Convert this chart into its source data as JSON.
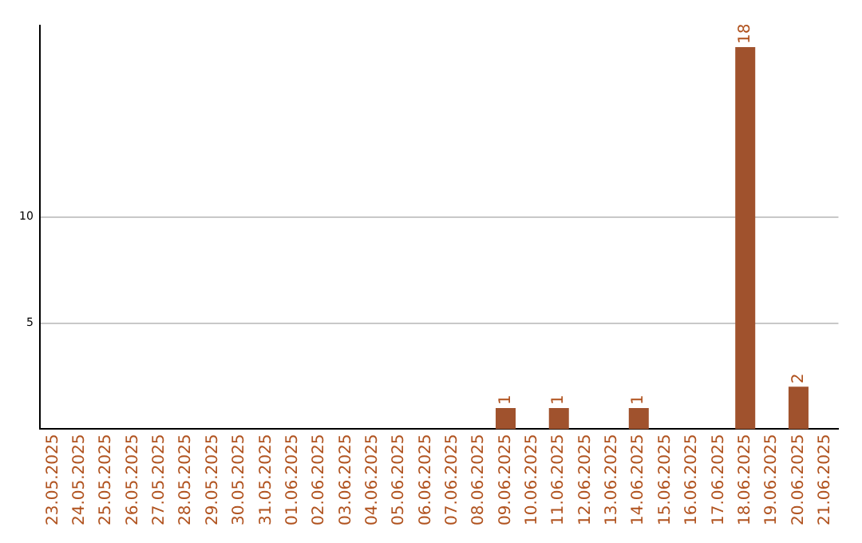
{
  "chart_data": {
    "type": "bar",
    "categories": [
      "23.05.2025",
      "24.05.2025",
      "25.05.2025",
      "26.05.2025",
      "27.05.2025",
      "28.05.2025",
      "29.05.2025",
      "30.05.2025",
      "31.05.2025",
      "01.06.2025",
      "02.06.2025",
      "03.06.2025",
      "04.06.2025",
      "05.06.2025",
      "06.06.2025",
      "07.06.2025",
      "08.06.2025",
      "09.06.2025",
      "10.06.2025",
      "11.06.2025",
      "12.06.2025",
      "13.06.2025",
      "14.06.2025",
      "15.06.2025",
      "16.06.2025",
      "17.06.2025",
      "18.06.2025",
      "19.06.2025",
      "20.06.2025",
      "21.06.2025"
    ],
    "values": [
      0,
      0,
      0,
      0,
      0,
      0,
      0,
      0,
      0,
      0,
      0,
      0,
      0,
      0,
      0,
      0,
      0,
      1,
      0,
      1,
      0,
      0,
      1,
      0,
      0,
      0,
      18,
      0,
      2,
      0
    ],
    "value_labels": [
      null,
      null,
      null,
      null,
      null,
      null,
      null,
      null,
      null,
      null,
      null,
      null,
      null,
      null,
      null,
      null,
      null,
      "1",
      null,
      "1",
      null,
      null,
      "1",
      null,
      null,
      null,
      "18",
      null,
      "2",
      null
    ],
    "color": "#a0522d",
    "ylim": [
      0,
      19
    ],
    "yticks": [
      5,
      10
    ],
    "grid": "y",
    "legend": false
  }
}
